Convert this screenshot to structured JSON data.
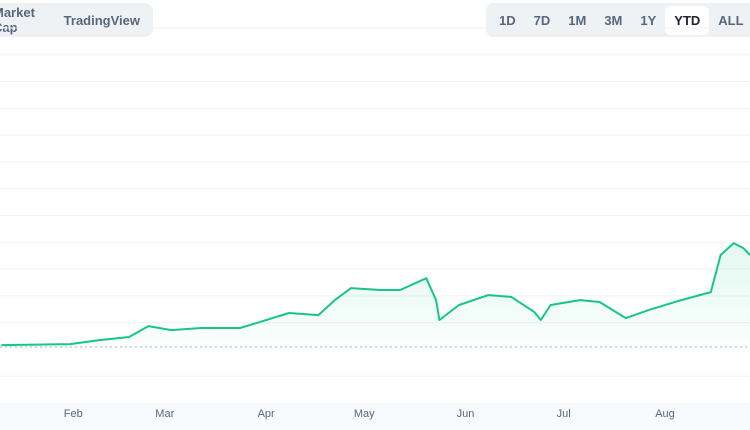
{
  "tabs": {
    "left": [
      "Market Cap",
      "TradingView"
    ],
    "ranges": [
      "1D",
      "7D",
      "1M",
      "3M",
      "1Y",
      "YTD",
      "ALL"
    ],
    "selected": "YTD"
  },
  "chart_data": {
    "type": "line",
    "color": "#16c784",
    "x": [
      9,
      30,
      39,
      48,
      54,
      61,
      70,
      82,
      88,
      97,
      106,
      111,
      116,
      125,
      131,
      139,
      142,
      143,
      149,
      158,
      165,
      172,
      174,
      177,
      186,
      192,
      200,
      207,
      217,
      226,
      229,
      233,
      236,
      238
    ],
    "values": [
      2.16,
      2.2,
      2.35,
      2.46,
      2.87,
      2.72,
      2.8,
      2.8,
      3.02,
      3.36,
      3.28,
      3.84,
      4.29,
      4.22,
      4.22,
      4.66,
      3.84,
      3.1,
      3.66,
      4.03,
      3.96,
      3.4,
      3.1,
      3.66,
      3.84,
      3.77,
      3.17,
      3.47,
      3.84,
      4.14,
      5.52,
      5.97,
      5.78,
      5.52
    ],
    "xlim": [
      8.6,
      238
    ],
    "xticks": [
      {
        "value": 31,
        "label": "Feb"
      },
      {
        "value": 59,
        "label": "Mar"
      },
      {
        "value": 90,
        "label": "Apr"
      },
      {
        "value": 120,
        "label": "May"
      },
      {
        "value": 151,
        "label": "Jun"
      },
      {
        "value": 181,
        "label": "Jul"
      },
      {
        "value": 212,
        "label": "Aug"
      }
    ],
    "ylim": [
      0,
      14
    ],
    "yticks": [
      1,
      3,
      4,
      5,
      6,
      7,
      8,
      9,
      10,
      11,
      12,
      13,
      14
    ],
    "baseline": 2.09,
    "grid": true
  }
}
